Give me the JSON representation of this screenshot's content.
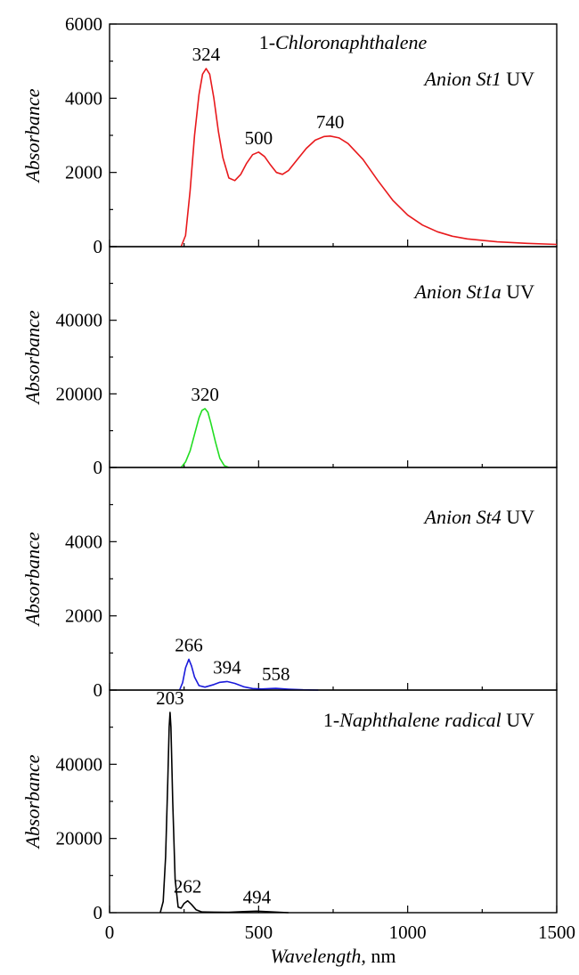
{
  "chart_data": [
    {
      "type": "line",
      "title_parts": [
        {
          "text": "1-",
          "italic": false
        },
        {
          "text": "Chloronaphthalene",
          "italic": true
        }
      ],
      "subtitle_parts": [
        {
          "text": "Anion St1",
          "italic": true
        },
        {
          "text": " UV",
          "italic": false
        }
      ],
      "ylabel": "Absorbance",
      "xlim": [
        0,
        1500
      ],
      "ylim": [
        0,
        6000
      ],
      "yticks": [
        0,
        2000,
        4000,
        6000
      ],
      "ytick_labels": [
        "0",
        "2000",
        "4000",
        "6000"
      ],
      "color": "#e8191c",
      "series": [
        {
          "x": [
            240,
            255,
            270,
            285,
            300,
            312,
            324,
            336,
            350,
            365,
            380,
            400,
            420,
            440,
            460,
            480,
            500,
            520,
            540,
            560,
            580,
            600,
            630,
            660,
            690,
            720,
            740,
            770,
            800,
            850,
            900,
            950,
            1000,
            1050,
            1100,
            1150,
            1200,
            1300,
            1400,
            1500
          ],
          "y": [
            0,
            300,
            1500,
            3000,
            4100,
            4650,
            4800,
            4650,
            4000,
            3100,
            2400,
            1850,
            1780,
            1950,
            2250,
            2480,
            2550,
            2430,
            2200,
            2000,
            1950,
            2050,
            2350,
            2650,
            2870,
            2970,
            2980,
            2930,
            2780,
            2350,
            1780,
            1250,
            850,
            580,
            400,
            280,
            210,
            130,
            90,
            60
          ]
        }
      ],
      "annotations": [
        {
          "label": "324",
          "x": 324,
          "y": 4800
        },
        {
          "label": "500",
          "x": 500,
          "y": 2550
        },
        {
          "label": "740",
          "x": 740,
          "y": 2980
        }
      ]
    },
    {
      "type": "line",
      "title_parts": [
        {
          "text": "Anion St1a",
          "italic": true
        },
        {
          "text": " UV",
          "italic": false
        }
      ],
      "ylabel": "Absorbance",
      "xlim": [
        0,
        1500
      ],
      "ylim": [
        0,
        60000
      ],
      "yticks": [
        0,
        20000,
        40000
      ],
      "ytick_labels": [
        "0",
        "20000",
        "40000"
      ],
      "color": "#22dd22",
      "series": [
        {
          "x": [
            240,
            255,
            270,
            285,
            300,
            310,
            320,
            330,
            340,
            355,
            370,
            385,
            400
          ],
          "y": [
            0,
            1500,
            4500,
            9000,
            13500,
            15500,
            16000,
            15000,
            12000,
            7000,
            2500,
            500,
            0
          ]
        }
      ],
      "annotations": [
        {
          "label": "320",
          "x": 320,
          "y": 16000
        }
      ]
    },
    {
      "type": "line",
      "title_parts": [
        {
          "text": "Anion St4",
          "italic": true
        },
        {
          "text": " UV",
          "italic": false
        }
      ],
      "ylabel": "Absorbance",
      "xlim": [
        0,
        1500
      ],
      "ylim": [
        0,
        6000
      ],
      "yticks": [
        0,
        2000,
        4000
      ],
      "ytick_labels": [
        "0",
        "2000",
        "4000"
      ],
      "color": "#1a1adb",
      "series": [
        {
          "x": [
            235,
            245,
            255,
            266,
            275,
            285,
            300,
            320,
            350,
            370,
            394,
            420,
            450,
            480,
            510,
            540,
            558,
            600,
            650,
            700
          ],
          "y": [
            0,
            200,
            600,
            830,
            650,
            350,
            120,
            80,
            150,
            210,
            230,
            180,
            90,
            40,
            30,
            40,
            45,
            25,
            8,
            0
          ]
        }
      ],
      "annotations": [
        {
          "label": "266",
          "x": 266,
          "y": 830
        },
        {
          "label": "394",
          "x": 394,
          "y": 230
        },
        {
          "label": "558",
          "x": 558,
          "y": 45
        }
      ]
    },
    {
      "type": "line",
      "title_parts": [
        {
          "text": "1-",
          "italic": false
        },
        {
          "text": "Naphthalene radical",
          "italic": true
        },
        {
          "text": " UV",
          "italic": false
        }
      ],
      "ylabel": "Absorbance",
      "xlabel_parts": [
        {
          "text": "Wavelength",
          "italic": true
        },
        {
          "text": ", nm",
          "italic": false
        }
      ],
      "xlim": [
        0,
        1500
      ],
      "ylim": [
        0,
        60000
      ],
      "xticks": [
        0,
        500,
        1000,
        1500
      ],
      "xtick_labels": [
        "0",
        "500",
        "1000",
        "1500"
      ],
      "yticks": [
        0,
        20000,
        40000
      ],
      "ytick_labels": [
        "0",
        "20000",
        "40000"
      ],
      "color": "#000000",
      "series": [
        {
          "x": [
            170,
            180,
            188,
            195,
            200,
            203,
            206,
            212,
            220,
            230,
            240,
            250,
            262,
            275,
            290,
            310,
            350,
            400,
            450,
            494,
            540,
            600
          ],
          "y": [
            0,
            3000,
            15000,
            35000,
            50000,
            54000,
            50000,
            30000,
            9000,
            1500,
            1200,
            2500,
            3200,
            2200,
            800,
            200,
            150,
            100,
            300,
            400,
            250,
            0
          ]
        }
      ],
      "annotations": [
        {
          "label": "203",
          "x": 203,
          "y": 54000
        },
        {
          "label": "262",
          "x": 262,
          "y": 3200
        },
        {
          "label": "494",
          "x": 494,
          "y": 400
        }
      ]
    }
  ]
}
